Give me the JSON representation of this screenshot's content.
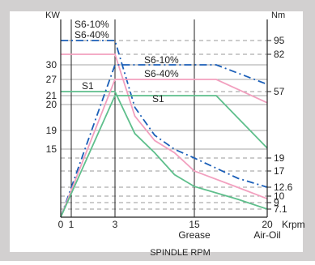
{
  "chart_data": {
    "type": "line",
    "xlabel": "SPINDLE RPM",
    "x_unit": "Krpm",
    "left_unit": "KW",
    "right_unit": "Nm",
    "x_ticks": [
      {
        "value": 0,
        "label": "0"
      },
      {
        "value": 1,
        "label": "1"
      },
      {
        "value": 3,
        "label": "3"
      },
      {
        "value": 15,
        "label": "15"
      },
      {
        "value": 20,
        "label": "20"
      }
    ],
    "x_sublabels": [
      {
        "value": 15,
        "label": "Grease"
      },
      {
        "value": 20,
        "label": "Air-Oil"
      }
    ],
    "y_left_ticks": [
      {
        "value": 15,
        "label": "15"
      },
      {
        "value": 19,
        "label": "19"
      },
      {
        "value": 20,
        "label": "20"
      },
      {
        "value": 21,
        "label": "21"
      },
      {
        "value": 27,
        "label": "27"
      },
      {
        "value": 30,
        "label": "30"
      }
    ],
    "y_right_ticks": [
      {
        "value": 7.1,
        "label": "7.1"
      },
      {
        "value": 9,
        "label": "9"
      },
      {
        "value": 10,
        "label": "10"
      },
      {
        "value": 12.6,
        "label": "12.6"
      },
      {
        "value": 17,
        "label": "17"
      },
      {
        "value": 19,
        "label": "19"
      },
      {
        "value": 57,
        "label": "57"
      },
      {
        "value": 82,
        "label": "82"
      },
      {
        "value": 95,
        "label": "95"
      }
    ],
    "power_series": [
      {
        "name": "S6-10%",
        "color": "#1b5fb8",
        "style": "dashdot",
        "x": [
          0,
          3,
          16.5,
          20
        ],
        "y": [
          0,
          30,
          30,
          25.2
        ]
      },
      {
        "name": "S6-40%",
        "color": "#f2a0bf",
        "style": "solid",
        "x": [
          0,
          3,
          16.5,
          20
        ],
        "y": [
          0,
          27,
          27,
          20.2
        ]
      },
      {
        "name": "S1",
        "color": "#5fbf8c",
        "style": "solid",
        "x": [
          0,
          3,
          16.5,
          20
        ],
        "y": [
          0,
          21,
          21,
          15.2
        ]
      }
    ],
    "torque_series": [
      {
        "name": "S6-10%",
        "color": "#1b5fb8",
        "style": "dashdot",
        "x": [
          0,
          3,
          6,
          9,
          12,
          15,
          18,
          20
        ],
        "y": [
          95,
          95,
          48,
          32,
          24,
          19,
          15,
          12.6
        ]
      },
      {
        "name": "S6-40%",
        "color": "#f2a0bf",
        "style": "solid",
        "x": [
          0,
          3,
          6,
          9,
          12,
          15,
          18,
          20
        ],
        "y": [
          82,
          82,
          43,
          29,
          22,
          17,
          12.5,
          9.6
        ]
      },
      {
        "name": "S1",
        "color": "#5fbf8c",
        "style": "solid",
        "x": [
          0,
          3,
          6,
          9,
          12,
          15,
          18,
          20
        ],
        "y": [
          57,
          57,
          33,
          22,
          16,
          12.8,
          9.5,
          7.1
        ]
      }
    ],
    "annotations": [
      {
        "text": "S6-10%",
        "for": "torque"
      },
      {
        "text": "S6-40%",
        "for": "torque"
      },
      {
        "text": "S6-10%",
        "for": "power"
      },
      {
        "text": "S6-40%",
        "for": "power"
      },
      {
        "text": "S1",
        "for": "torque"
      },
      {
        "text": "S1",
        "for": "power"
      }
    ],
    "frame_color": "#d2d0d0"
  }
}
